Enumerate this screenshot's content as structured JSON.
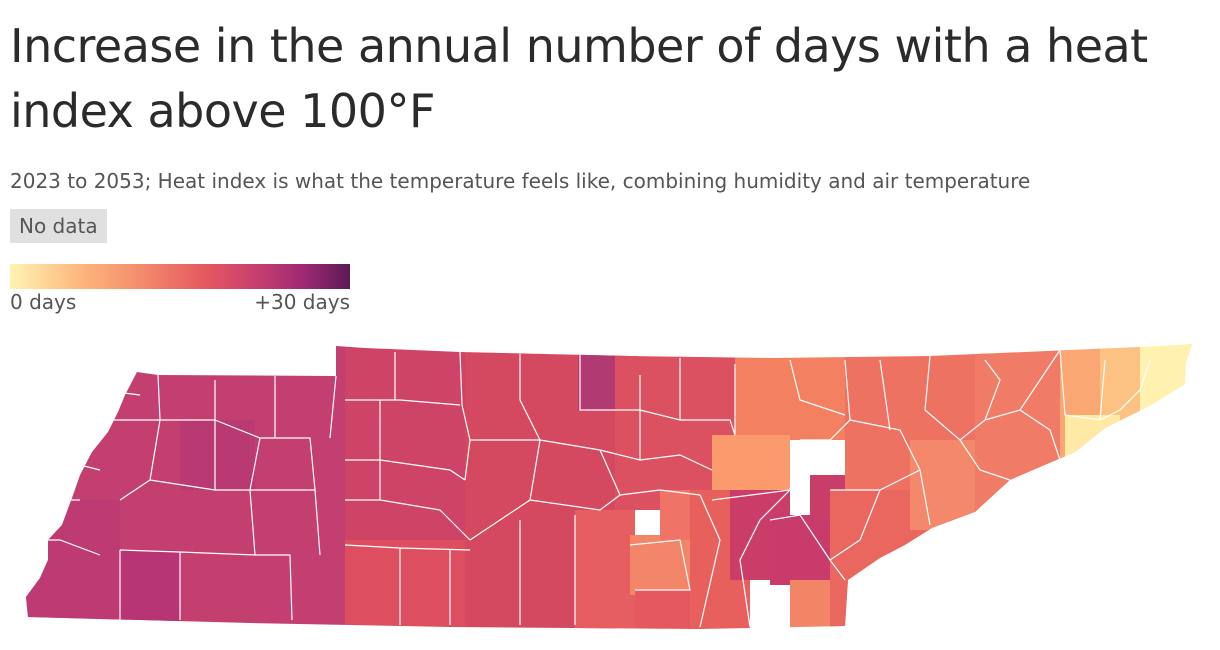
{
  "title": "Increase in the annual number of days with a heat index above 100°F",
  "subtitle": "2023 to 2053; Heat index is what the temperature feels like, combining humidity and air temperature",
  "no_data_label": "No data",
  "legend": {
    "min_label": "0 days",
    "max_label": "+30 days",
    "min_value": 0,
    "max_value": 30,
    "colors": [
      "#fff3b2",
      "#fdb37b",
      "#f38d6c",
      "#e45660",
      "#c83f6f",
      "#a02a73",
      "#5b1a55"
    ]
  },
  "map": {
    "region": "Tennessee counties",
    "color_scale": "sequential: light yellow (0 days) to dark purple (+30 days)",
    "county_border_color": "#ffffff"
  }
}
